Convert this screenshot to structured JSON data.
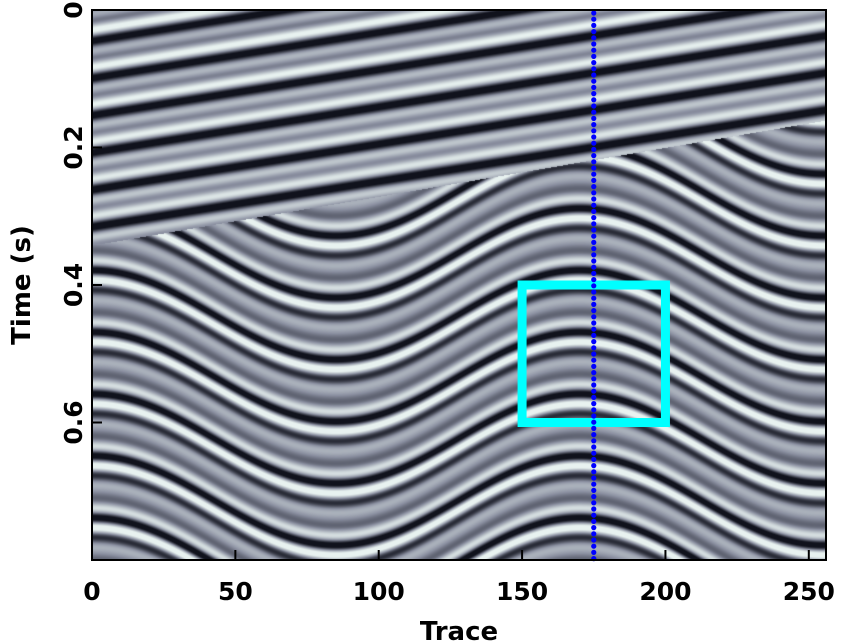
{
  "chart_data": {
    "type": "heatmap",
    "title": "",
    "xlabel": "Trace",
    "ylabel": "Time (s)",
    "xlim": [
      0,
      256
    ],
    "ylim": [
      0,
      0.8
    ],
    "y_inverted": true,
    "xticks": [
      0,
      50,
      100,
      150,
      200,
      250
    ],
    "xtick_labels": [
      "0",
      "50",
      "100",
      "150",
      "200",
      "250"
    ],
    "yticks": [
      0,
      0.2,
      0.4,
      0.6
    ],
    "ytick_labels": [
      "0",
      "0.2",
      "0.4",
      "0.6"
    ],
    "colormap": "gray",
    "grid": false,
    "annotations": [
      {
        "type": "rectangle",
        "x": [
          150,
          200
        ],
        "y": [
          0.4,
          0.6
        ],
        "color": "#00ffff"
      },
      {
        "type": "vertical-dotted-line",
        "x": 175,
        "color": "#0000ff"
      }
    ]
  }
}
